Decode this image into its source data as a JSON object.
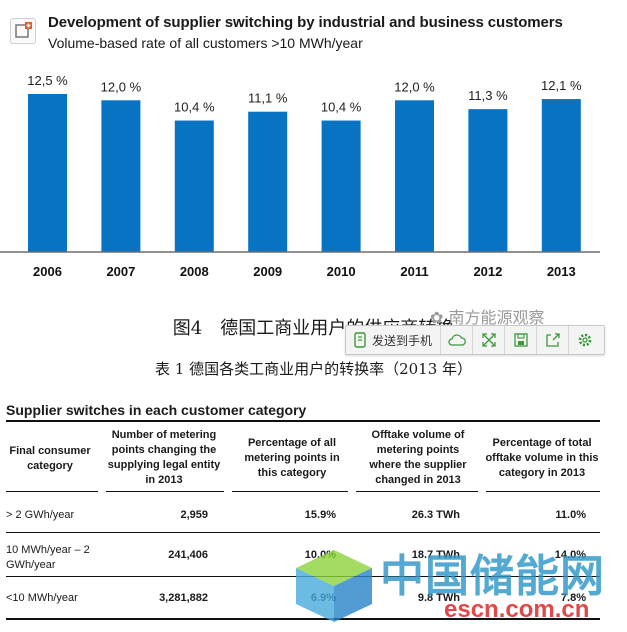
{
  "chart_data": {
    "type": "bar",
    "title": "Development of supplier switching by industrial and business customers",
    "subtitle": "Volume-based rate of all customers >10 MWh/year",
    "categories": [
      "2006",
      "2007",
      "2008",
      "2009",
      "2010",
      "2011",
      "2012",
      "2013"
    ],
    "values": [
      12.5,
      12.0,
      10.4,
      11.1,
      10.4,
      12.0,
      11.3,
      12.1
    ],
    "value_labels": [
      "12,5 %",
      "12,0 %",
      "10,4 %",
      "11,1 %",
      "10,4 %",
      "12,0 %",
      "11,3 %",
      "12,1 %"
    ],
    "ylim": [
      0,
      12.5
    ],
    "bar_color": "#0872c3",
    "grid": false,
    "legend": "none"
  },
  "figure_caption": "图4　德国工商业用户的供应商转换",
  "watermark_text": "南方能源观察",
  "table_caption": "表 1  德国各类工商业用户的转换率（2013 年）",
  "toolbar": {
    "send_label": "发送到手机",
    "icons": [
      "phone-icon",
      "cloud-icon",
      "expand-icon",
      "save-icon",
      "share-icon",
      "settings-icon"
    ]
  },
  "table": {
    "title": "Supplier switches in each customer category",
    "headers": [
      "Final consumer category",
      "Number of metering points changing the supplying legal entity in 2013",
      "Percentage of all metering points in this category",
      "Offtake volume of metering points where the supplier changed in 2013",
      "Percentage of total offtake volume in this category in 2013"
    ],
    "rows": [
      [
        "> 2 GWh/year",
        "2,959",
        "15.9%",
        "26.3 TWh",
        "11.0%"
      ],
      [
        "10 MWh/year – 2 GWh/year",
        "241,406",
        "10.0%",
        "18.7 TWh",
        "14.0%"
      ],
      [
        "<10 MWh/year",
        "3,281,882",
        "6.9%",
        "9.8 TWh",
        "7.8%"
      ]
    ]
  },
  "brand": {
    "name": "中国储能网",
    "url": "escn.com.cn"
  },
  "colors": {
    "bar": "#0872c3",
    "axis": "#6f6f6f",
    "watermark_blue": "#2e96c8",
    "watermark_red": "#dc2828"
  }
}
